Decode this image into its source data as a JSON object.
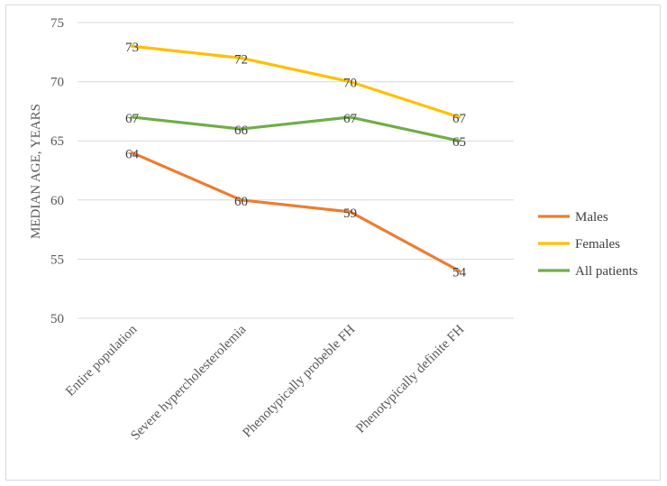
{
  "chart_data": {
    "type": "line",
    "title": "",
    "xlabel": "",
    "ylabel": "MEDIAN AGE, YEARS",
    "ylim": [
      50,
      75
    ],
    "yticks": [
      50,
      55,
      60,
      65,
      70,
      75
    ],
    "grid": true,
    "legend_position": "right",
    "categories": [
      "Entire population",
      "Severe hypercholesterolemia",
      "Phenotypically probeble FH",
      "Phenotypically definite FH"
    ],
    "series": [
      {
        "name": "Males",
        "values": [
          64,
          60,
          59,
          54
        ],
        "color": "#ED7D31"
      },
      {
        "name": "Females",
        "values": [
          73,
          72,
          70,
          67
        ],
        "color": "#FFC000"
      },
      {
        "name": "All patients",
        "values": [
          67,
          66,
          67,
          65
        ],
        "color": "#70AD47"
      }
    ],
    "colors": {
      "grid": "#d9d9d9",
      "text": "#595959",
      "border": "#d9d9d9"
    }
  }
}
